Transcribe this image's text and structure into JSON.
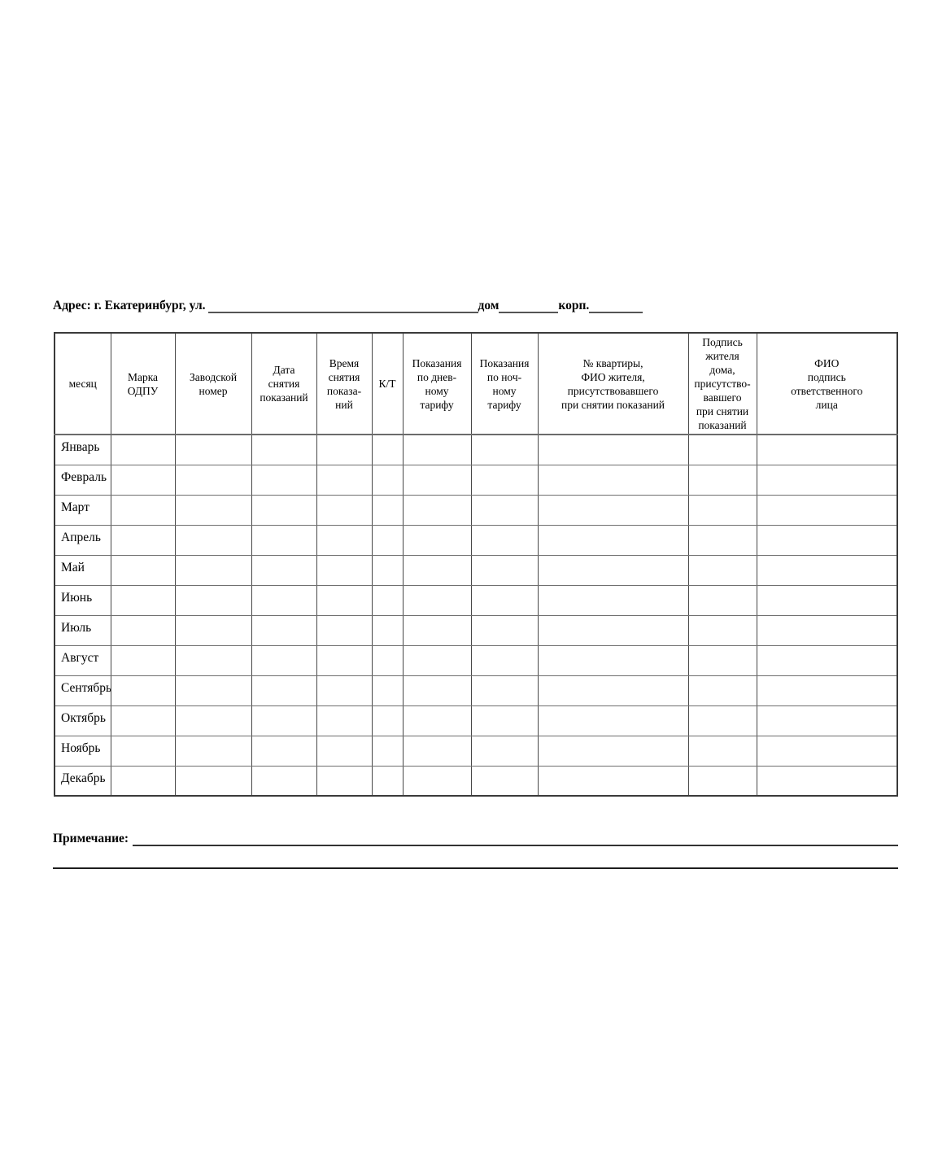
{
  "address": {
    "label": "Адрес: г. Екатеринбург, ул.",
    "dom_label": "дом",
    "korp_label": "корп."
  },
  "note": {
    "label": "Примечание:"
  },
  "table": {
    "columns": [
      {
        "key": "month",
        "label": "месяц"
      },
      {
        "key": "meter-brand",
        "label": "Марка\nОДПУ"
      },
      {
        "key": "serial-number",
        "label": "Заводской\nномер"
      },
      {
        "key": "reading-date",
        "label": "Дата\nснятия\nпоказаний"
      },
      {
        "key": "reading-time",
        "label": "Время\nснятия\nпоказа-\nний"
      },
      {
        "key": "kt",
        "label": "К/Т"
      },
      {
        "key": "day-tariff",
        "label": "Показания\nпо днев-\nному\nтарифу"
      },
      {
        "key": "night-tariff",
        "label": "Показания\nпо ноч-\nному\nтарифу"
      },
      {
        "key": "apartment-resident",
        "label": "№ квартиры,\nФИО жителя,\nприсутствовавшего\nпри снятии показаний"
      },
      {
        "key": "resident-signature",
        "label": "Подпись\nжителя\nдома,\nприсутство-\nвавшего\nпри снятии\nпоказаний"
      },
      {
        "key": "responsible-person",
        "label": "ФИО\nподпись\nответственного\nлица"
      }
    ],
    "months": [
      "Январь",
      "Февраль",
      "Март",
      "Апрель",
      "Май",
      "Июнь",
      "Июль",
      "Август",
      "Сентябрь",
      "Октябрь",
      "Ноябрь",
      "Декабрь"
    ]
  }
}
